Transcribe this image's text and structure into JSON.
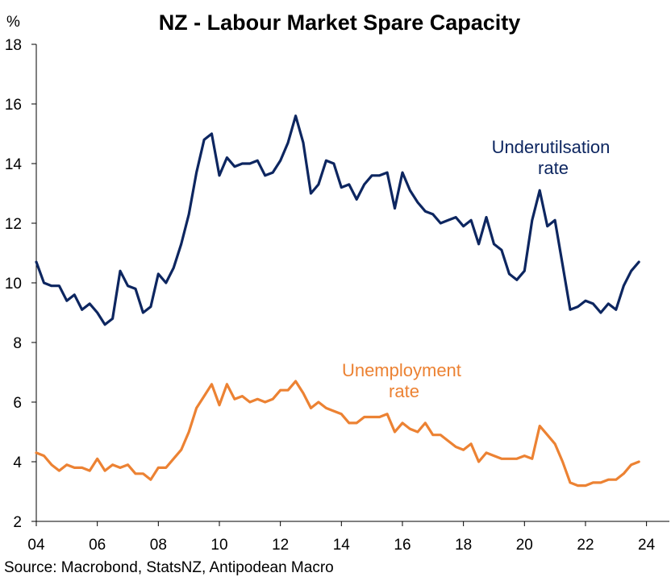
{
  "chart_data": {
    "type": "line",
    "title": "NZ - Labour Market Spare Capacity",
    "ylabel": "%",
    "xlabel": "",
    "ylim": [
      2,
      18
    ],
    "yticks": [
      "2",
      "4",
      "6",
      "8",
      "10",
      "12",
      "14",
      "16",
      "18"
    ],
    "xlim": [
      2004,
      2024.75
    ],
    "xticks": [
      "04",
      "06",
      "08",
      "10",
      "12",
      "14",
      "16",
      "18",
      "20",
      "22",
      "24"
    ],
    "grid": false,
    "source": "Source: Macrobond, StatsNZ, Antipodean Macro",
    "series": [
      {
        "name": "Underutilsation rate",
        "label_lines": [
          "Underutilsation",
          "rate"
        ],
        "color": "#0d2660",
        "x_start": 2004.0,
        "x_step": 0.25,
        "values": [
          10.7,
          10.0,
          9.9,
          9.9,
          9.4,
          9.6,
          9.1,
          9.3,
          9.0,
          8.6,
          8.8,
          10.4,
          9.9,
          9.8,
          9.0,
          9.2,
          10.3,
          10.0,
          10.5,
          11.3,
          12.3,
          13.7,
          14.8,
          15.0,
          13.6,
          14.2,
          13.9,
          14.0,
          14.0,
          14.1,
          13.6,
          13.7,
          14.1,
          14.7,
          15.6,
          14.7,
          13.0,
          13.3,
          14.1,
          14.0,
          13.2,
          13.3,
          12.8,
          13.3,
          13.6,
          13.6,
          13.7,
          12.5,
          13.7,
          13.1,
          12.7,
          12.4,
          12.3,
          12.0,
          12.1,
          12.2,
          11.9,
          12.1,
          11.3,
          12.2,
          11.3,
          11.1,
          10.3,
          10.1,
          10.4,
          12.1,
          13.1,
          11.9,
          12.1,
          10.6,
          9.1,
          9.2,
          9.4,
          9.3,
          9.0,
          9.3,
          9.1,
          9.9,
          10.4,
          10.7
        ]
      },
      {
        "name": "Unemployment rate",
        "label_lines": [
          "Unemployment",
          "rate"
        ],
        "color": "#ec8233",
        "x_start": 2004.0,
        "x_step": 0.25,
        "values": [
          4.3,
          4.2,
          3.9,
          3.7,
          3.9,
          3.8,
          3.8,
          3.7,
          4.1,
          3.7,
          3.9,
          3.8,
          3.9,
          3.6,
          3.6,
          3.4,
          3.8,
          3.8,
          4.1,
          4.4,
          5.0,
          5.8,
          6.2,
          6.6,
          5.9,
          6.6,
          6.1,
          6.2,
          6.0,
          6.1,
          6.0,
          6.1,
          6.4,
          6.4,
          6.7,
          6.3,
          5.8,
          6.0,
          5.8,
          5.7,
          5.6,
          5.3,
          5.3,
          5.5,
          5.5,
          5.5,
          5.6,
          5.0,
          5.3,
          5.1,
          5.0,
          5.3,
          4.9,
          4.9,
          4.7,
          4.5,
          4.4,
          4.6,
          4.0,
          4.3,
          4.2,
          4.1,
          4.1,
          4.1,
          4.2,
          4.1,
          5.2,
          4.9,
          4.6,
          4.0,
          3.3,
          3.2,
          3.2,
          3.3,
          3.3,
          3.4,
          3.4,
          3.6,
          3.9,
          4.0
        ]
      }
    ]
  }
}
